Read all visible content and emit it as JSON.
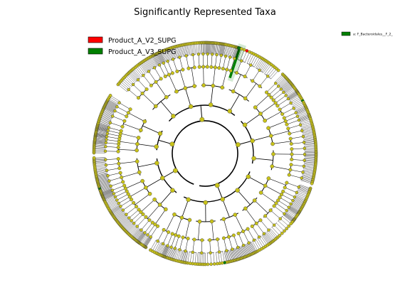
{
  "title": "Significantly Represented Taxa",
  "legend": {
    "items": [
      {
        "label": "Product_A_V2_SUPG",
        "color": "#ff0000"
      },
      {
        "label": "Product_A_V3_SUPG",
        "color": "#008000"
      }
    ],
    "highlight_label": "a: F_Bacteroidales__F_2_",
    "highlight_color": "#008000"
  },
  "colors": {
    "node": "#c8c21a",
    "edge": "#000000",
    "enriched_v2": "#ff0000",
    "enriched_v3": "#008000",
    "highlight_fill": "#cfe8cf"
  },
  "chart_data": {
    "type": "cladogram",
    "title": "Significantly Represented Taxa",
    "series": [
      {
        "name": "Product_A_V2_SUPG"
      },
      {
        "name": "Product_A_V3_SUPG"
      }
    ],
    "highlighted_clades": [
      {
        "letter": "a",
        "name": "F_Bacteroidales__F_2_",
        "group": "Product_A_V3_SUPG"
      }
    ]
  }
}
